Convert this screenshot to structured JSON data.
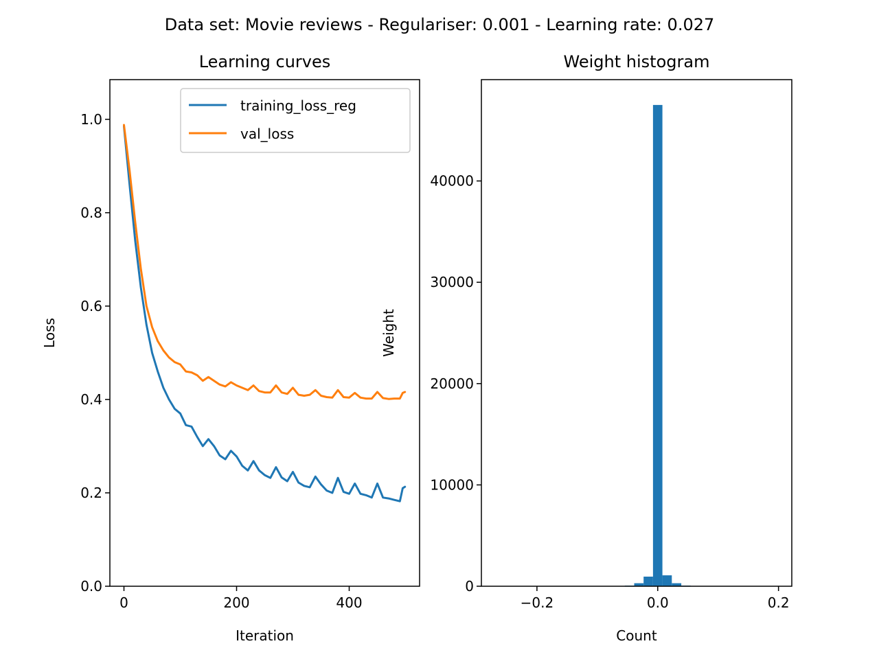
{
  "suptitle": "Data set: Movie reviews - Regulariser: 0.001 - Learning rate: 0.027",
  "colors": {
    "blue": "#1f77b4",
    "orange": "#ff7f0e",
    "axis": "#000000"
  },
  "chart_data": [
    {
      "type": "line",
      "title": "Learning curves",
      "xlabel": "Iteration",
      "ylabel": "Loss",
      "xlim": [
        -25,
        525
      ],
      "ylim": [
        0.0,
        1.085
      ],
      "xticks": [
        0,
        200,
        400
      ],
      "xtick_labels": [
        "0",
        "200",
        "400"
      ],
      "yticks": [
        0.0,
        0.2,
        0.4,
        0.6,
        0.8,
        1.0
      ],
      "ytick_labels": [
        "0.0",
        "0.2",
        "0.4",
        "0.6",
        "0.8",
        "1.0"
      ],
      "legend": "top-right",
      "grid": false,
      "x": [
        0,
        10,
        20,
        30,
        40,
        50,
        60,
        70,
        80,
        90,
        100,
        110,
        120,
        130,
        140,
        150,
        160,
        170,
        180,
        190,
        200,
        210,
        220,
        230,
        240,
        250,
        260,
        270,
        280,
        290,
        300,
        310,
        320,
        330,
        340,
        350,
        360,
        370,
        380,
        390,
        400,
        410,
        420,
        430,
        440,
        450,
        460,
        470,
        480,
        490,
        495,
        499
      ],
      "series": [
        {
          "name": "training_loss_reg",
          "color": "#1f77b4",
          "values": [
            0.985,
            0.86,
            0.74,
            0.64,
            0.56,
            0.5,
            0.46,
            0.425,
            0.4,
            0.38,
            0.37,
            0.345,
            0.342,
            0.32,
            0.3,
            0.315,
            0.3,
            0.28,
            0.272,
            0.29,
            0.278,
            0.258,
            0.248,
            0.268,
            0.248,
            0.238,
            0.232,
            0.255,
            0.233,
            0.225,
            0.245,
            0.222,
            0.215,
            0.212,
            0.235,
            0.218,
            0.205,
            0.2,
            0.232,
            0.202,
            0.198,
            0.22,
            0.198,
            0.195,
            0.19,
            0.22,
            0.19,
            0.188,
            0.185,
            0.182,
            0.21,
            0.213
          ]
        },
        {
          "name": "val_loss",
          "color": "#ff7f0e",
          "values": [
            0.988,
            0.89,
            0.78,
            0.68,
            0.6,
            0.555,
            0.525,
            0.505,
            0.49,
            0.48,
            0.475,
            0.46,
            0.458,
            0.452,
            0.44,
            0.448,
            0.44,
            0.432,
            0.428,
            0.437,
            0.43,
            0.425,
            0.42,
            0.43,
            0.418,
            0.415,
            0.415,
            0.43,
            0.415,
            0.412,
            0.425,
            0.41,
            0.408,
            0.41,
            0.42,
            0.408,
            0.405,
            0.404,
            0.42,
            0.405,
            0.404,
            0.414,
            0.404,
            0.402,
            0.402,
            0.416,
            0.403,
            0.401,
            0.402,
            0.402,
            0.414,
            0.416
          ]
        }
      ]
    },
    {
      "type": "bar",
      "title": "Weight histogram",
      "xlabel": "Count",
      "ylabel": "Weight",
      "xlim": [
        -0.292,
        0.222
      ],
      "ylim": [
        0,
        50000
      ],
      "xticks": [
        -0.2,
        0.0,
        0.2
      ],
      "xtick_labels": [
        "−0.2",
        "0.0",
        "0.2"
      ],
      "yticks": [
        0,
        10000,
        20000,
        30000,
        40000
      ],
      "ytick_labels": [
        "0",
        "10000",
        "20000",
        "30000",
        "40000"
      ],
      "grid": false,
      "color": "#1f77b4",
      "bin_width": 0.0156,
      "bin_starts": [
        -0.0546,
        -0.039,
        -0.0234,
        -0.0078,
        0.0078,
        0.0234,
        0.039
      ],
      "counts": [
        60,
        300,
        950,
        47500,
        1080,
        300,
        60
      ]
    }
  ]
}
